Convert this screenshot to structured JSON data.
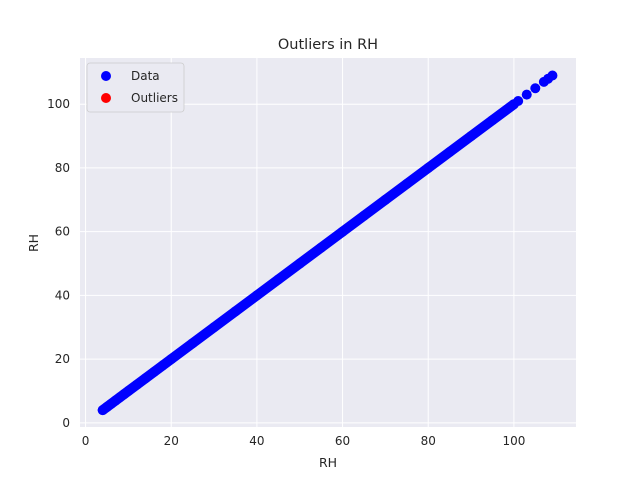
{
  "chart_data": {
    "type": "scatter",
    "title": "Outliers in RH",
    "xlabel": "RH",
    "ylabel": "RH",
    "xlim": [
      -1.3,
      114.5
    ],
    "ylim": [
      -1.3,
      114.5
    ],
    "xticks": [
      0,
      20,
      40,
      60,
      80,
      100
    ],
    "yticks": [
      0,
      20,
      40,
      60,
      80,
      100
    ],
    "grid": true,
    "legend_position": "top-left",
    "series": [
      {
        "name": "Data",
        "color": "#0000ff",
        "x_range": [
          4,
          109
        ],
        "y_equals_x": true,
        "points": [
          [
            4,
            4
          ],
          [
            5,
            5
          ],
          [
            6,
            6
          ],
          [
            7,
            7
          ],
          [
            8,
            8
          ],
          [
            9,
            9
          ],
          [
            10,
            10
          ],
          [
            12,
            12
          ],
          [
            14,
            14
          ],
          [
            16,
            16
          ],
          [
            18,
            18
          ],
          [
            20,
            20
          ],
          [
            25,
            25
          ],
          [
            30,
            30
          ],
          [
            35,
            35
          ],
          [
            40,
            40
          ],
          [
            45,
            45
          ],
          [
            50,
            50
          ],
          [
            55,
            55
          ],
          [
            60,
            60
          ],
          [
            65,
            65
          ],
          [
            70,
            70
          ],
          [
            75,
            75
          ],
          [
            80,
            80
          ],
          [
            85,
            85
          ],
          [
            90,
            90
          ],
          [
            95,
            95
          ],
          [
            100,
            100
          ],
          [
            101,
            101
          ],
          [
            103,
            103
          ],
          [
            105,
            105
          ],
          [
            107,
            107
          ],
          [
            108,
            108
          ],
          [
            109,
            109
          ]
        ]
      },
      {
        "name": "Outliers",
        "color": "#ff0000",
        "points": []
      }
    ]
  }
}
